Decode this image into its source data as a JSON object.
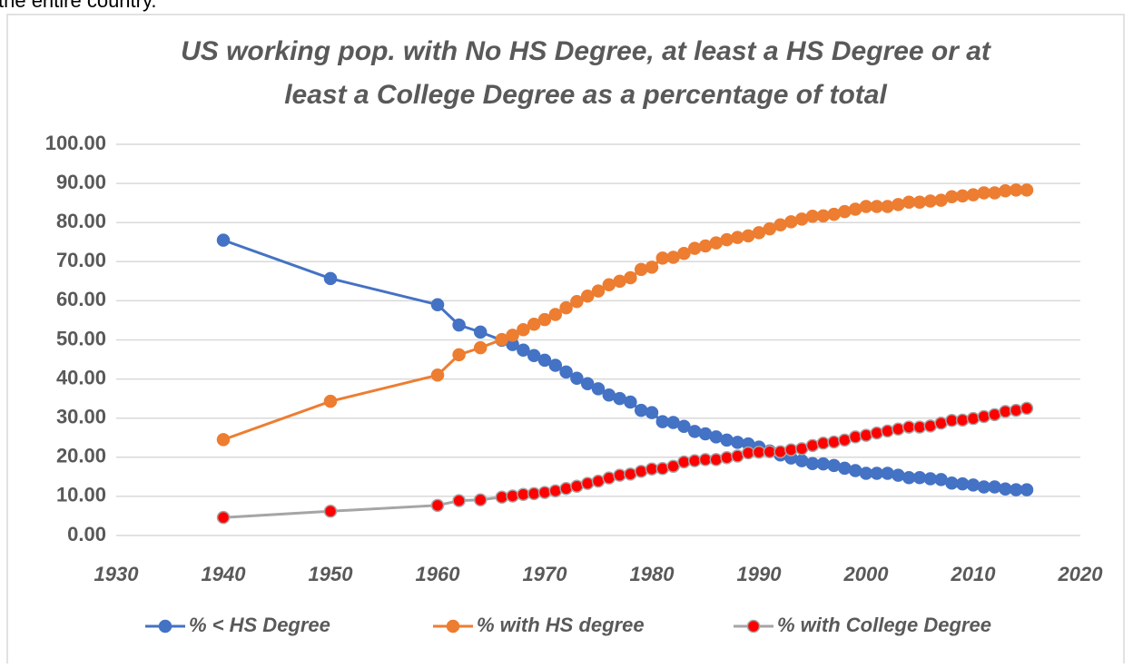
{
  "context_text": "the entire country.",
  "chart_data": {
    "type": "line",
    "title": [
      "US working pop. with No HS Degree, at least a HS Degree or at",
      "least a College Degree as a percentage of total"
    ],
    "x": [
      1940,
      1950,
      1960,
      1962,
      1964,
      1966,
      1967,
      1968,
      1969,
      1970,
      1971,
      1972,
      1973,
      1974,
      1975,
      1976,
      1977,
      1978,
      1979,
      1980,
      1981,
      1982,
      1983,
      1984,
      1985,
      1986,
      1987,
      1988,
      1989,
      1990,
      1991,
      1992,
      1993,
      1994,
      1995,
      1996,
      1997,
      1998,
      1999,
      2000,
      2001,
      2002,
      2003,
      2004,
      2005,
      2006,
      2007,
      2008,
      2009,
      2010,
      2011,
      2012,
      2013,
      2014,
      2015
    ],
    "series": [
      {
        "name": "% < HS Degree",
        "color": "#4472c4",
        "marker_color": "#4472c4",
        "values": [
          75.5,
          65.7,
          59.0,
          53.8,
          52.0,
          49.9,
          48.8,
          47.4,
          46.0,
          44.8,
          43.5,
          41.8,
          40.2,
          38.8,
          37.5,
          35.9,
          35.0,
          34.1,
          32.0,
          31.4,
          29.1,
          28.9,
          27.9,
          26.6,
          26.0,
          25.2,
          24.4,
          23.8,
          23.4,
          22.6,
          21.6,
          20.6,
          19.8,
          19.1,
          18.4,
          18.3,
          17.9,
          17.2,
          16.6,
          15.9,
          15.9,
          15.9,
          15.4,
          14.8,
          14.8,
          14.5,
          14.3,
          13.4,
          13.2,
          12.9,
          12.4,
          12.4,
          11.9,
          11.7,
          11.7
        ]
      },
      {
        "name": "% with HS degree",
        "color": "#ed7d31",
        "marker_color": "#ed7d31",
        "values": [
          24.5,
          34.3,
          41.0,
          46.2,
          48.0,
          50.1,
          51.2,
          52.6,
          54.0,
          55.2,
          56.5,
          58.2,
          59.8,
          61.2,
          62.5,
          64.1,
          65.0,
          65.9,
          68.0,
          68.6,
          70.9,
          71.1,
          72.1,
          73.4,
          74.0,
          74.8,
          75.6,
          76.2,
          76.6,
          77.4,
          78.4,
          79.4,
          80.2,
          80.9,
          81.6,
          81.7,
          82.1,
          82.8,
          83.4,
          84.1,
          84.1,
          84.1,
          84.6,
          85.2,
          85.2,
          85.5,
          85.7,
          86.6,
          86.8,
          87.1,
          87.6,
          87.6,
          88.1,
          88.3,
          88.3
        ]
      },
      {
        "name": "% with College Degree",
        "color": "#a5a5a5",
        "marker_color": "#ff0000",
        "values": [
          4.6,
          6.2,
          7.7,
          8.9,
          9.1,
          9.8,
          10.1,
          10.5,
          10.7,
          11.0,
          11.4,
          12.0,
          12.6,
          13.3,
          13.9,
          14.7,
          15.4,
          15.7,
          16.4,
          17.0,
          17.1,
          17.7,
          18.8,
          19.1,
          19.4,
          19.4,
          19.9,
          20.3,
          21.1,
          21.3,
          21.4,
          21.4,
          21.9,
          22.2,
          23.0,
          23.6,
          23.9,
          24.4,
          25.2,
          25.6,
          26.2,
          26.7,
          27.2,
          27.7,
          27.7,
          28.0,
          28.7,
          29.4,
          29.5,
          29.9,
          30.4,
          30.9,
          31.7,
          32.0,
          32.5
        ]
      }
    ],
    "xlim": [
      1930,
      2020
    ],
    "xticks": [
      1930,
      1940,
      1950,
      1960,
      1970,
      1980,
      1990,
      2000,
      2010,
      2020
    ],
    "ylim": [
      0,
      100
    ],
    "yticks": [
      {
        "value": 0,
        "label": "0.00"
      },
      {
        "value": 10,
        "label": "10.00"
      },
      {
        "value": 20,
        "label": "20.00"
      },
      {
        "value": 30,
        "label": "30.00"
      },
      {
        "value": 40,
        "label": "40.00"
      },
      {
        "value": 50,
        "label": "50.00"
      },
      {
        "value": 60,
        "label": "60.00"
      },
      {
        "value": 70,
        "label": "70.00"
      },
      {
        "value": 80,
        "label": "80.00"
      },
      {
        "value": 90,
        "label": "90.00"
      },
      {
        "value": 100,
        "label": "100.00"
      }
    ],
    "grid": true,
    "legend": "bottom"
  }
}
